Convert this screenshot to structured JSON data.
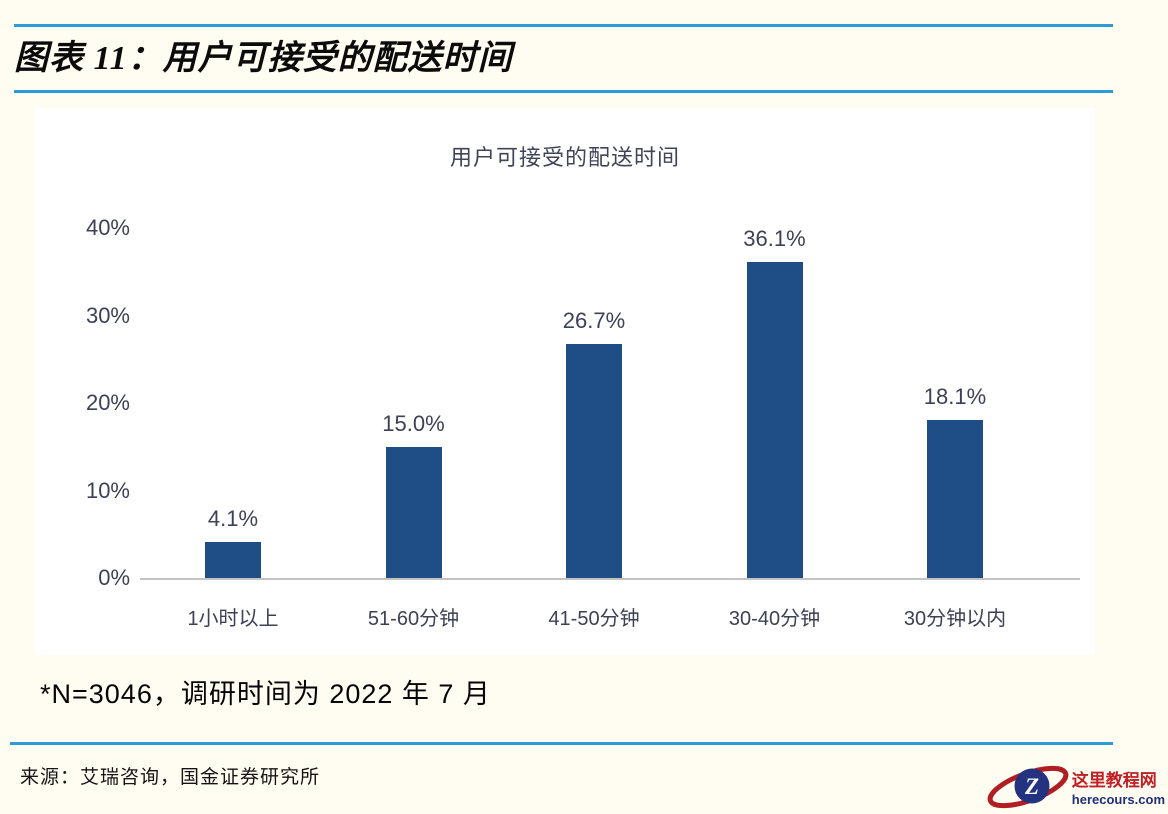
{
  "header": {
    "title": "图表 11：用户可接受的配送时间"
  },
  "chart_data": {
    "type": "bar",
    "title": "用户可接受的配送时间",
    "categories": [
      "1小时以上",
      "51-60分钟",
      "41-50分钟",
      "30-40分钟",
      "30分钟以内"
    ],
    "values": [
      4.1,
      15.0,
      26.7,
      36.1,
      18.1
    ],
    "data_labels": [
      "4.1%",
      "15.0%",
      "26.7%",
      "36.1%",
      "18.1%"
    ],
    "ylim": [
      0,
      40
    ],
    "yticks": [
      0,
      10,
      20,
      30,
      40
    ],
    "ytick_labels": [
      "0%",
      "10%",
      "20%",
      "30%",
      "40%"
    ],
    "xlabel": "",
    "ylabel": "",
    "grid": false,
    "legend": false,
    "bar_color": "#1f4e87"
  },
  "footnote": "*N=3046，调研时间为 2022 年 7 月",
  "source": "来源：艾瑞咨询，国金证券研究所",
  "watermark": {
    "site_name": "这里教程网",
    "site_url": "herecours.com",
    "logo_letter": "Z"
  },
  "colors": {
    "accent_rule": "#2b9cd8",
    "bar": "#1f4e87",
    "axis_text": "#3d4156",
    "page_background": "#fffdf2",
    "logo_red": "#b01e24",
    "logo_navy": "#24337f"
  }
}
